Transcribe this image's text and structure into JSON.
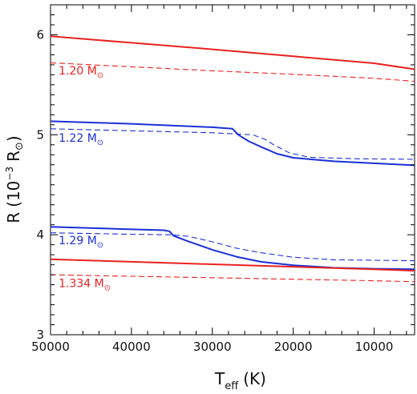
{
  "chart_data": {
    "type": "line",
    "title": "",
    "x": {
      "label_main": "T",
      "label_sub": "eff",
      "label_unit": "(K)",
      "lim": [
        50000,
        5000
      ],
      "reversed": true,
      "ticks": [
        50000,
        40000,
        30000,
        20000,
        10000
      ],
      "tick_labels": [
        "50000",
        "40000",
        "30000",
        "20000",
        "10000"
      ]
    },
    "y": {
      "label_main": "R",
      "label_paren_open": "(10",
      "label_exp": "−3",
      "label_unit": "R",
      "label_sun": "⊙",
      "label_paren_close": ")",
      "lim": [
        3,
        6.3
      ],
      "ticks": [
        3,
        4,
        5,
        6
      ],
      "tick_labels": [
        "3",
        "4",
        "5",
        "6"
      ]
    },
    "grid": false,
    "legend": "none",
    "colors": {
      "red": "#e8221f",
      "blue": "#1b2fd6"
    },
    "series": [
      {
        "mass": "1.20",
        "style": "solid",
        "color": "red",
        "points": [
          [
            50000,
            5.985
          ],
          [
            40000,
            5.92
          ],
          [
            30000,
            5.855
          ],
          [
            20000,
            5.785
          ],
          [
            10000,
            5.715
          ],
          [
            5000,
            5.655
          ]
        ]
      },
      {
        "mass": "1.20",
        "style": "dashed",
        "color": "red",
        "points": [
          [
            50000,
            5.72
          ],
          [
            40000,
            5.68
          ],
          [
            30000,
            5.64
          ],
          [
            20000,
            5.605
          ],
          [
            10000,
            5.565
          ],
          [
            5000,
            5.535
          ]
        ]
      },
      {
        "mass": "1.22",
        "style": "solid",
        "color": "blue",
        "points": [
          [
            50000,
            5.135
          ],
          [
            40000,
            5.11
          ],
          [
            30000,
            5.075
          ],
          [
            27500,
            5.06
          ],
          [
            26800,
            5.0
          ],
          [
            25500,
            4.935
          ],
          [
            24000,
            4.88
          ],
          [
            22000,
            4.81
          ],
          [
            20000,
            4.77
          ],
          [
            15000,
            4.735
          ],
          [
            10000,
            4.715
          ],
          [
            5000,
            4.695
          ]
        ]
      },
      {
        "mass": "1.22",
        "style": "dashed",
        "color": "blue",
        "points": [
          [
            50000,
            5.06
          ],
          [
            40000,
            5.04
          ],
          [
            30000,
            5.02
          ],
          [
            25000,
            5.0
          ],
          [
            23500,
            4.955
          ],
          [
            22500,
            4.905
          ],
          [
            20500,
            4.82
          ],
          [
            18000,
            4.775
          ],
          [
            12000,
            4.76
          ],
          [
            5000,
            4.755
          ]
        ]
      },
      {
        "mass": "1.29",
        "style": "solid",
        "color": "blue",
        "points": [
          [
            50000,
            4.08
          ],
          [
            42000,
            4.06
          ],
          [
            36000,
            4.045
          ],
          [
            35300,
            4.035
          ],
          [
            34800,
            3.99
          ],
          [
            33000,
            3.935
          ],
          [
            30000,
            3.85
          ],
          [
            27000,
            3.78
          ],
          [
            24000,
            3.73
          ],
          [
            20000,
            3.695
          ],
          [
            15000,
            3.67
          ],
          [
            10000,
            3.66
          ],
          [
            5000,
            3.655
          ]
        ]
      },
      {
        "mass": "1.29",
        "style": "dashed",
        "color": "blue",
        "points": [
          [
            50000,
            4.02
          ],
          [
            40000,
            4.005
          ],
          [
            35000,
            4.0
          ],
          [
            33000,
            3.985
          ],
          [
            30000,
            3.93
          ],
          [
            27000,
            3.865
          ],
          [
            24000,
            3.82
          ],
          [
            20000,
            3.775
          ],
          [
            15000,
            3.75
          ],
          [
            10000,
            3.745
          ],
          [
            5000,
            3.74
          ]
        ]
      },
      {
        "mass": "1.334",
        "style": "solid",
        "color": "red",
        "points": [
          [
            50000,
            3.755
          ],
          [
            40000,
            3.73
          ],
          [
            30000,
            3.705
          ],
          [
            20000,
            3.68
          ],
          [
            10000,
            3.655
          ],
          [
            5000,
            3.64
          ]
        ]
      },
      {
        "mass": "1.334",
        "style": "dashed",
        "color": "red",
        "points": [
          [
            50000,
            3.6
          ],
          [
            40000,
            3.585
          ],
          [
            30000,
            3.57
          ],
          [
            20000,
            3.555
          ],
          [
            10000,
            3.54
          ],
          [
            5000,
            3.53
          ]
        ]
      }
    ],
    "annotations": [
      {
        "text": "1.20 M",
        "sun": "⊙",
        "color": "red",
        "at": [
          49000,
          5.605
        ]
      },
      {
        "text": "1.22 M",
        "sun": "⊙",
        "color": "blue",
        "at": [
          49000,
          4.93
        ]
      },
      {
        "text": "1.29 M",
        "sun": "⊙",
        "color": "blue",
        "at": [
          49000,
          3.905
        ]
      },
      {
        "text": "1.334 M",
        "sun": "⊙",
        "color": "red",
        "at": [
          49000,
          3.475
        ]
      }
    ]
  }
}
